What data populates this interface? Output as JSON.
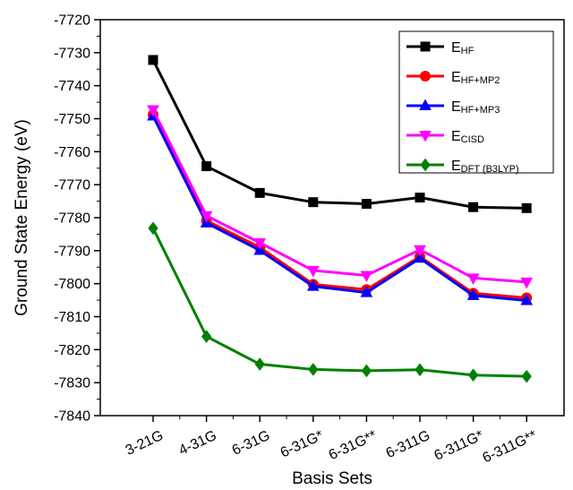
{
  "chart_data": {
    "type": "line",
    "xlabel": "Basis Sets",
    "ylabel": "Ground State Energy (eV)",
    "ylim": [
      -7840,
      -7720
    ],
    "y_ticks": [
      -7720,
      -7730,
      -7740,
      -7750,
      -7760,
      -7770,
      -7780,
      -7790,
      -7800,
      -7810,
      -7820,
      -7830,
      -7840
    ],
    "y_tick_labels": [
      "-7720",
      "-7730",
      "-7740",
      "-7750",
      "-7760",
      "-7770",
      "-7780",
      "-7790",
      "-7800",
      "-7810",
      "-7820",
      "-7830",
      "-7840"
    ],
    "categories": [
      "3-21G",
      "4-31G",
      "6-31G",
      "6-31G*",
      "6-31G**",
      "6-311G",
      "6-311G*",
      "6-311G**"
    ],
    "grid": false,
    "legend_position": "top-right",
    "series": [
      {
        "name": "E",
        "name_sub": "HF",
        "color": "#000000",
        "marker": "square",
        "values": [
          -7732.2,
          -7764.4,
          -7772.5,
          -7775.3,
          -7775.8,
          -7773.9,
          -7776.8,
          -7777.1
        ]
      },
      {
        "name": "E",
        "name_sub": "HF+MP2",
        "color": "#ff0000",
        "marker": "circle",
        "values": [
          -7748.8,
          -7780.9,
          -7789.0,
          -7800.2,
          -7801.8,
          -7791.8,
          -7802.9,
          -7804.3
        ]
      },
      {
        "name": "E",
        "name_sub": "HF+MP3",
        "color": "#0000ff",
        "marker": "triangle-up",
        "values": [
          -7749.2,
          -7781.6,
          -7789.9,
          -7800.8,
          -7802.7,
          -7792.3,
          -7803.6,
          -7805.1
        ]
      },
      {
        "name": "E",
        "name_sub": "CISD",
        "color": "#ff00ff",
        "marker": "triangle-down",
        "values": [
          -7747.3,
          -7779.4,
          -7787.6,
          -7796.0,
          -7797.5,
          -7789.7,
          -7798.3,
          -7799.5
        ]
      },
      {
        "name": "E",
        "name_sub": "DFT (B3LYP)",
        "color": "#008000",
        "marker": "diamond",
        "values": [
          -7783.2,
          -7816.0,
          -7824.4,
          -7826.0,
          -7826.4,
          -7826.1,
          -7827.7,
          -7828.1
        ]
      }
    ]
  }
}
